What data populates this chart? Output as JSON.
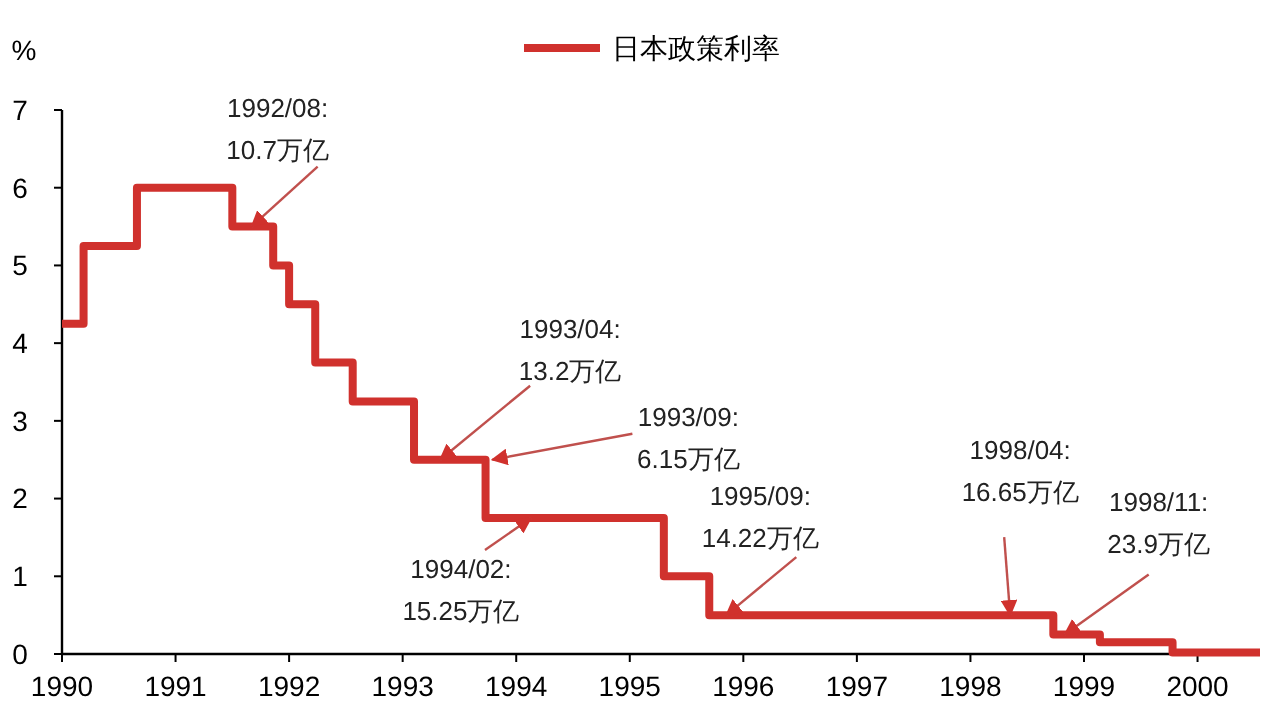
{
  "chart_data": {
    "type": "step",
    "ylabel": "%",
    "legend": "top",
    "line_style": "solid",
    "grid": false,
    "x": [
      1990,
      1990.19,
      1990.66,
      1991.5,
      1991.86,
      1992,
      1992.23,
      1992.56,
      1993.1,
      1993.73,
      1995.3,
      1995.7,
      1998.73,
      1999.14,
      1999.78,
      2000.55
    ],
    "series": [
      {
        "name": "日本政策利率",
        "color": "#d0312d",
        "values": [
          4.25,
          5.25,
          6,
          5.5,
          5,
          4.5,
          3.75,
          3.25,
          2.5,
          1.75,
          1,
          0.5,
          0.25,
          0.15,
          0.02,
          0.02
        ]
      }
    ],
    "xlim": [
      1990,
      2000.55
    ],
    "xticks": [
      1990,
      1991,
      1992,
      1993,
      1994,
      1995,
      1996,
      1997,
      1998,
      1999,
      2000
    ],
    "ylim": [
      0,
      7
    ],
    "yticks": [
      0,
      1,
      2,
      3,
      4,
      5,
      6,
      7
    ],
    "annotations": [
      {
        "text": "1992/08:\n10.7万亿",
        "x": 1991.67,
        "y": 5.5
      },
      {
        "text": "1993/04:\n13.2万亿",
        "x": 1993.33,
        "y": 2.5
      },
      {
        "text": "1993/09:\n6.15万亿",
        "x": 1993.79,
        "y": 2.5
      },
      {
        "text": "1994/02:\n15.25万亿",
        "x": 1994.13,
        "y": 1.75
      },
      {
        "text": "1995/09:\n14.22万亿",
        "x": 1995.85,
        "y": 0.5
      },
      {
        "text": "1998/04:\n16.65万亿",
        "x": 1998.35,
        "y": 0.5
      },
      {
        "text": "1998/11:\n23.9万亿",
        "x": 1998.83,
        "y": 0.25
      }
    ]
  }
}
